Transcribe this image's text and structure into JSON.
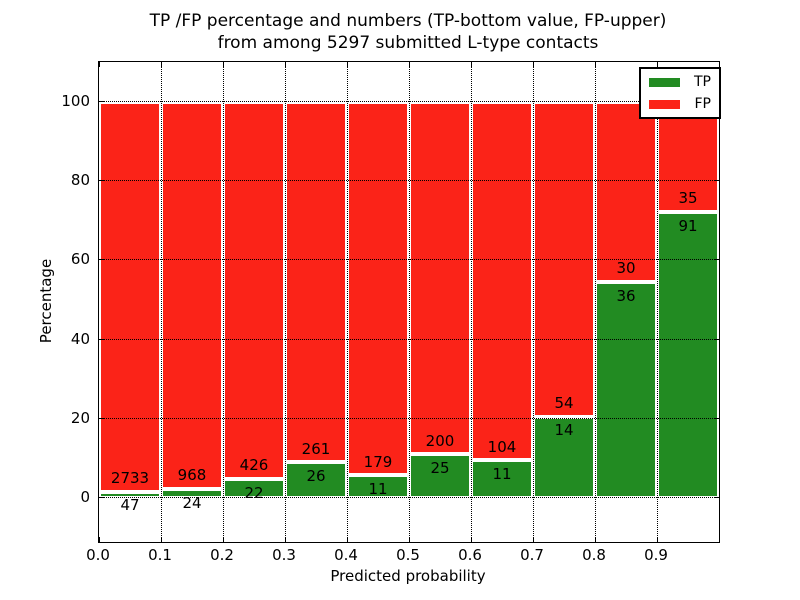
{
  "title": {
    "line1": "TP /FP percentage and numbers (TP-bottom value, FP-upper)",
    "line2": "from among 5297 submitted L-type contacts"
  },
  "chart_data": {
    "type": "bar",
    "stacked": true,
    "normalized_to_percent": true,
    "title": "TP /FP percentage and numbers (TP-bottom value, FP-upper) from among 5297 submitted L-type contacts",
    "xlabel": "Predicted probability",
    "ylabel": "Percentage",
    "total_contacts": 5297,
    "bin_width": 0.1,
    "x_tick_labels": [
      "0.0",
      "0.1",
      "0.2",
      "0.3",
      "0.4",
      "0.5",
      "0.6",
      "0.7",
      "0.8",
      "0.9"
    ],
    "y_ticks": [
      0,
      20,
      40,
      60,
      80,
      100
    ],
    "xlim": [
      0.0,
      1.0
    ],
    "ylim": [
      -11,
      110
    ],
    "grid": true,
    "legend_position": "upper right",
    "series": [
      {
        "name": "TP",
        "color": "#228b22",
        "counts": [
          47,
          24,
          22,
          26,
          11,
          25,
          11,
          14,
          36,
          91
        ]
      },
      {
        "name": "FP",
        "color": "#fb2318",
        "counts": [
          2733,
          968,
          426,
          261,
          179,
          200,
          104,
          54,
          30,
          35
        ]
      }
    ],
    "percent_tp_per_bin": [
      1.69,
      2.42,
      4.91,
      9.06,
      5.79,
      11.11,
      9.57,
      20.59,
      54.55,
      72.22
    ]
  },
  "colors": {
    "tp": "#228b22",
    "fp": "#fb2318",
    "background": "#ffffff",
    "frame": "#000000",
    "grid": "#000000",
    "bar_edge": "#ffffff"
  }
}
